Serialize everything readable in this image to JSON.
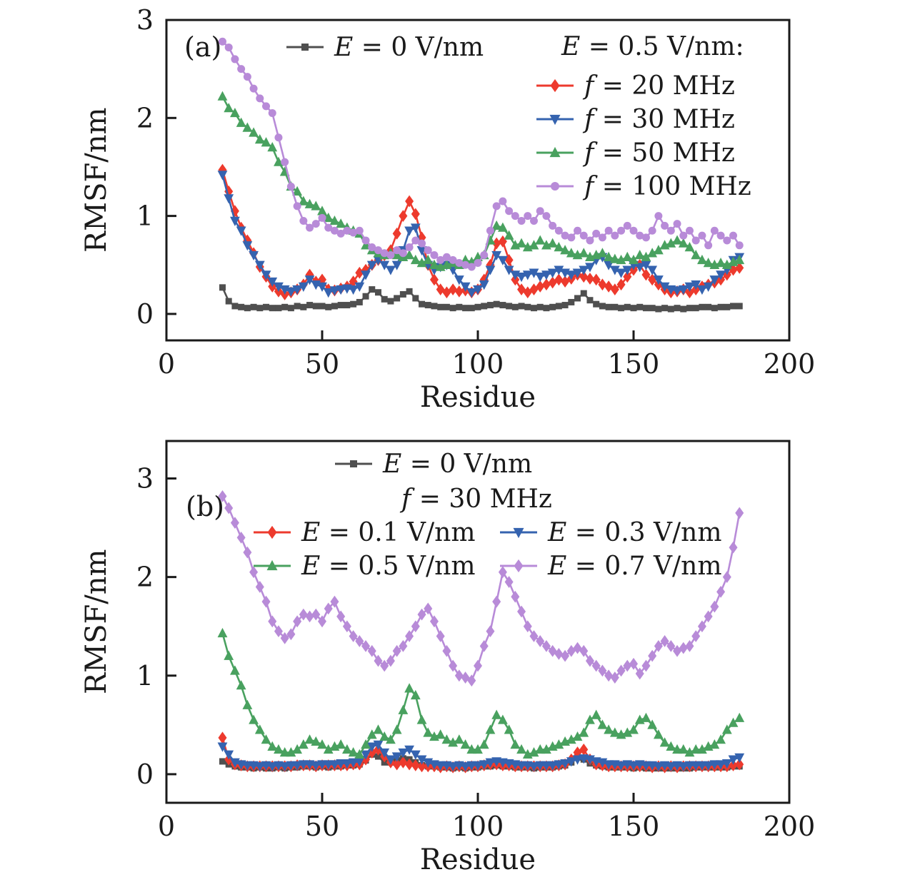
{
  "figure": {
    "panels": [
      "(a)",
      "(b)"
    ],
    "axis_color": "#1a1a1a",
    "background": "#ffffff"
  },
  "chart_data": [
    {
      "type": "line",
      "panel_label": "(a)",
      "xlabel": "Residue",
      "ylabel": "RMSF/nm",
      "xlim": [
        0,
        200
      ],
      "ylim": [
        -0.27,
        3.0
      ],
      "xticks": [
        0,
        50,
        100,
        150,
        200
      ],
      "yticks": [
        0,
        1,
        2,
        3
      ],
      "grid": false,
      "legend_position": "inside top, markers with line segments",
      "legend": {
        "header": "E = 0.5 V/nm:"
      },
      "x": [
        18,
        20,
        22,
        24,
        26,
        28,
        30,
        32,
        34,
        36,
        38,
        40,
        42,
        44,
        46,
        48,
        50,
        52,
        54,
        56,
        58,
        60,
        62,
        64,
        66,
        68,
        70,
        72,
        74,
        76,
        78,
        80,
        82,
        84,
        86,
        88,
        90,
        92,
        94,
        96,
        98,
        100,
        102,
        104,
        106,
        108,
        110,
        112,
        114,
        116,
        118,
        120,
        122,
        124,
        126,
        128,
        130,
        132,
        134,
        136,
        138,
        140,
        142,
        144,
        146,
        148,
        150,
        152,
        154,
        156,
        158,
        160,
        162,
        164,
        166,
        168,
        170,
        172,
        174,
        176,
        178,
        180,
        182,
        184
      ],
      "series": [
        {
          "name": "E = 0 V/nm",
          "marker": "square",
          "color": "#4f4f4f",
          "values": [
            0.27,
            0.13,
            0.08,
            0.07,
            0.06,
            0.07,
            0.06,
            0.07,
            0.06,
            0.06,
            0.07,
            0.06,
            0.08,
            0.07,
            0.09,
            0.08,
            0.08,
            0.07,
            0.08,
            0.09,
            0.09,
            0.1,
            0.12,
            0.18,
            0.25,
            0.22,
            0.15,
            0.13,
            0.16,
            0.2,
            0.23,
            0.16,
            0.1,
            0.09,
            0.08,
            0.07,
            0.07,
            0.06,
            0.07,
            0.06,
            0.06,
            0.07,
            0.08,
            0.09,
            0.1,
            0.09,
            0.08,
            0.07,
            0.08,
            0.07,
            0.06,
            0.07,
            0.06,
            0.07,
            0.08,
            0.09,
            0.12,
            0.16,
            0.21,
            0.14,
            0.1,
            0.08,
            0.07,
            0.07,
            0.06,
            0.07,
            0.06,
            0.07,
            0.06,
            0.06,
            0.05,
            0.06,
            0.05,
            0.06,
            0.05,
            0.06,
            0.06,
            0.07,
            0.07,
            0.06,
            0.07,
            0.07,
            0.08,
            0.08
          ]
        },
        {
          "name": "f = 20 MHz",
          "marker": "diamond",
          "color": "#ed3a2d",
          "values": [
            1.47,
            1.25,
            1.05,
            0.88,
            0.75,
            0.62,
            0.48,
            0.38,
            0.28,
            0.23,
            0.2,
            0.22,
            0.25,
            0.3,
            0.4,
            0.33,
            0.35,
            0.25,
            0.24,
            0.26,
            0.28,
            0.33,
            0.42,
            0.45,
            0.5,
            0.55,
            0.6,
            0.65,
            0.82,
            1.0,
            1.15,
            1.02,
            0.78,
            0.5,
            0.35,
            0.25,
            0.22,
            0.25,
            0.23,
            0.24,
            0.22,
            0.25,
            0.35,
            0.5,
            0.72,
            0.74,
            0.55,
            0.35,
            0.25,
            0.22,
            0.25,
            0.28,
            0.3,
            0.32,
            0.35,
            0.33,
            0.36,
            0.4,
            0.38,
            0.36,
            0.35,
            0.3,
            0.28,
            0.25,
            0.3,
            0.38,
            0.45,
            0.5,
            0.4,
            0.35,
            0.3,
            0.25,
            0.22,
            0.23,
            0.25,
            0.22,
            0.25,
            0.28,
            0.3,
            0.32,
            0.35,
            0.4,
            0.45,
            0.47
          ]
        },
        {
          "name": "f = 30 MHz",
          "marker": "triangle-down",
          "color": "#3563af",
          "values": [
            1.42,
            1.18,
            0.95,
            0.85,
            0.7,
            0.6,
            0.5,
            0.4,
            0.33,
            0.28,
            0.25,
            0.23,
            0.25,
            0.28,
            0.35,
            0.3,
            0.28,
            0.22,
            0.24,
            0.25,
            0.26,
            0.25,
            0.28,
            0.4,
            0.5,
            0.55,
            0.5,
            0.45,
            0.5,
            0.65,
            0.85,
            0.88,
            0.65,
            0.5,
            0.45,
            0.48,
            0.5,
            0.45,
            0.35,
            0.28,
            0.22,
            0.25,
            0.3,
            0.45,
            0.6,
            0.55,
            0.45,
            0.4,
            0.38,
            0.4,
            0.42,
            0.38,
            0.4,
            0.42,
            0.45,
            0.42,
            0.4,
            0.42,
            0.45,
            0.48,
            0.55,
            0.58,
            0.5,
            0.45,
            0.42,
            0.45,
            0.5,
            0.48,
            0.5,
            0.45,
            0.35,
            0.28,
            0.25,
            0.24,
            0.25,
            0.28,
            0.3,
            0.25,
            0.28,
            0.35,
            0.4,
            0.45,
            0.55,
            0.58
          ]
        },
        {
          "name": "f = 50 MHz",
          "marker": "triangle-up",
          "color": "#49a15f",
          "values": [
            2.22,
            2.1,
            2.05,
            1.95,
            1.9,
            1.85,
            1.78,
            1.75,
            1.7,
            1.55,
            1.45,
            1.3,
            1.25,
            1.15,
            1.12,
            1.1,
            1.05,
            0.98,
            0.95,
            0.92,
            0.88,
            0.85,
            0.82,
            0.7,
            0.65,
            0.62,
            0.6,
            0.62,
            0.6,
            0.58,
            0.6,
            0.55,
            0.52,
            0.55,
            0.5,
            0.48,
            0.5,
            0.52,
            0.5,
            0.55,
            0.53,
            0.58,
            0.6,
            0.75,
            0.9,
            0.88,
            0.8,
            0.7,
            0.72,
            0.68,
            0.7,
            0.75,
            0.7,
            0.72,
            0.68,
            0.65,
            0.62,
            0.6,
            0.62,
            0.58,
            0.6,
            0.62,
            0.58,
            0.56,
            0.55,
            0.58,
            0.55,
            0.6,
            0.58,
            0.62,
            0.65,
            0.7,
            0.72,
            0.75,
            0.72,
            0.68,
            0.6,
            0.55,
            0.52,
            0.5,
            0.52,
            0.5,
            0.53,
            0.55
          ]
        },
        {
          "name": "f = 100 MHz",
          "marker": "circle",
          "color": "#b88bd8",
          "values": [
            2.78,
            2.72,
            2.6,
            2.5,
            2.42,
            2.3,
            2.2,
            2.12,
            2.05,
            1.8,
            1.55,
            1.3,
            1.1,
            0.95,
            0.88,
            0.92,
            0.98,
            0.88,
            0.85,
            0.82,
            0.85,
            0.83,
            0.85,
            0.75,
            0.68,
            0.65,
            0.62,
            0.6,
            0.65,
            0.62,
            0.68,
            0.75,
            0.72,
            0.65,
            0.6,
            0.55,
            0.58,
            0.55,
            0.52,
            0.5,
            0.48,
            0.52,
            0.6,
            0.85,
            1.1,
            1.15,
            1.05,
            1.0,
            0.95,
            1.0,
            0.95,
            1.05,
            1.0,
            0.9,
            0.85,
            0.8,
            0.78,
            0.85,
            0.8,
            0.75,
            0.82,
            0.78,
            0.85,
            0.8,
            0.85,
            0.9,
            0.85,
            0.8,
            0.78,
            0.85,
            1.0,
            0.9,
            0.85,
            0.92,
            0.8,
            0.85,
            0.75,
            0.8,
            0.7,
            0.85,
            0.8,
            0.75,
            0.8,
            0.7
          ]
        }
      ]
    },
    {
      "type": "line",
      "panel_label": "(b)",
      "xlabel": "Residue",
      "ylabel": "RMSF/nm",
      "xlim": [
        0,
        200
      ],
      "ylim": [
        -0.29,
        3.38
      ],
      "xticks": [
        0,
        50,
        100,
        150,
        200
      ],
      "yticks": [
        0,
        1,
        2,
        3
      ],
      "grid": false,
      "legend_position": "inside top, markers with line segments",
      "legend": {
        "subheader": "f = 30 MHz"
      },
      "x": [
        18,
        20,
        22,
        24,
        26,
        28,
        30,
        32,
        34,
        36,
        38,
        40,
        42,
        44,
        46,
        48,
        50,
        52,
        54,
        56,
        58,
        60,
        62,
        64,
        66,
        68,
        70,
        72,
        74,
        76,
        78,
        80,
        82,
        84,
        86,
        88,
        90,
        92,
        94,
        96,
        98,
        100,
        102,
        104,
        106,
        108,
        110,
        112,
        114,
        116,
        118,
        120,
        122,
        124,
        126,
        128,
        130,
        132,
        134,
        136,
        138,
        140,
        142,
        144,
        146,
        148,
        150,
        152,
        154,
        156,
        158,
        160,
        162,
        164,
        166,
        168,
        170,
        172,
        174,
        176,
        178,
        180,
        182,
        184
      ],
      "series": [
        {
          "name": "E = 0 V/nm",
          "marker": "square",
          "color": "#4f4f4f",
          "values": [
            0.13,
            0.1,
            0.08,
            0.07,
            0.07,
            0.06,
            0.07,
            0.06,
            0.06,
            0.07,
            0.06,
            0.07,
            0.07,
            0.08,
            0.08,
            0.07,
            0.08,
            0.07,
            0.08,
            0.08,
            0.09,
            0.09,
            0.1,
            0.14,
            0.2,
            0.18,
            0.12,
            0.12,
            0.14,
            0.16,
            0.15,
            0.12,
            0.09,
            0.08,
            0.08,
            0.07,
            0.07,
            0.06,
            0.07,
            0.06,
            0.07,
            0.07,
            0.08,
            0.08,
            0.09,
            0.08,
            0.08,
            0.07,
            0.07,
            0.07,
            0.06,
            0.07,
            0.07,
            0.07,
            0.08,
            0.09,
            0.12,
            0.17,
            0.15,
            0.11,
            0.09,
            0.08,
            0.07,
            0.07,
            0.07,
            0.07,
            0.06,
            0.07,
            0.06,
            0.06,
            0.06,
            0.06,
            0.06,
            0.06,
            0.06,
            0.06,
            0.07,
            0.07,
            0.07,
            0.07,
            0.07,
            0.07,
            0.08,
            0.08
          ]
        },
        {
          "name": "E = 0.1 V/nm",
          "marker": "diamond",
          "color": "#ed3a2d",
          "values": [
            0.37,
            0.15,
            0.1,
            0.09,
            0.08,
            0.08,
            0.08,
            0.08,
            0.08,
            0.08,
            0.08,
            0.08,
            0.09,
            0.09,
            0.09,
            0.08,
            0.09,
            0.09,
            0.09,
            0.09,
            0.09,
            0.1,
            0.1,
            0.15,
            0.22,
            0.25,
            0.18,
            0.12,
            0.1,
            0.12,
            0.1,
            0.09,
            0.08,
            0.08,
            0.08,
            0.07,
            0.08,
            0.07,
            0.08,
            0.07,
            0.08,
            0.08,
            0.09,
            0.1,
            0.1,
            0.09,
            0.09,
            0.08,
            0.08,
            0.08,
            0.08,
            0.08,
            0.08,
            0.08,
            0.09,
            0.1,
            0.15,
            0.22,
            0.25,
            0.15,
            0.1,
            0.09,
            0.08,
            0.08,
            0.08,
            0.08,
            0.08,
            0.08,
            0.08,
            0.07,
            0.08,
            0.07,
            0.08,
            0.07,
            0.08,
            0.08,
            0.08,
            0.08,
            0.08,
            0.08,
            0.08,
            0.08,
            0.09,
            0.1
          ]
        },
        {
          "name": "E = 0.3 V/nm",
          "marker": "triangle-down",
          "color": "#3563af",
          "values": [
            0.28,
            0.2,
            0.12,
            0.1,
            0.09,
            0.09,
            0.08,
            0.09,
            0.08,
            0.09,
            0.08,
            0.09,
            0.09,
            0.1,
            0.1,
            0.09,
            0.1,
            0.1,
            0.1,
            0.11,
            0.11,
            0.12,
            0.13,
            0.2,
            0.28,
            0.3,
            0.22,
            0.15,
            0.18,
            0.22,
            0.25,
            0.2,
            0.15,
            0.12,
            0.1,
            0.09,
            0.09,
            0.08,
            0.09,
            0.08,
            0.09,
            0.09,
            0.1,
            0.12,
            0.13,
            0.12,
            0.11,
            0.1,
            0.09,
            0.09,
            0.08,
            0.09,
            0.09,
            0.09,
            0.1,
            0.11,
            0.13,
            0.15,
            0.16,
            0.15,
            0.13,
            0.12,
            0.1,
            0.1,
            0.09,
            0.1,
            0.09,
            0.1,
            0.09,
            0.09,
            0.08,
            0.09,
            0.08,
            0.09,
            0.08,
            0.09,
            0.09,
            0.09,
            0.09,
            0.1,
            0.1,
            0.11,
            0.15,
            0.17
          ]
        },
        {
          "name": "E = 0.5 V/nm",
          "marker": "triangle-up",
          "color": "#49a15f",
          "values": [
            1.43,
            1.2,
            1.05,
            0.9,
            0.7,
            0.55,
            0.45,
            0.35,
            0.28,
            0.25,
            0.22,
            0.22,
            0.25,
            0.3,
            0.35,
            0.33,
            0.3,
            0.25,
            0.28,
            0.3,
            0.25,
            0.22,
            0.2,
            0.3,
            0.4,
            0.45,
            0.38,
            0.35,
            0.45,
            0.65,
            0.87,
            0.8,
            0.55,
            0.42,
            0.38,
            0.4,
            0.35,
            0.32,
            0.35,
            0.3,
            0.25,
            0.25,
            0.3,
            0.45,
            0.6,
            0.55,
            0.45,
            0.3,
            0.25,
            0.2,
            0.22,
            0.25,
            0.25,
            0.28,
            0.3,
            0.33,
            0.35,
            0.38,
            0.42,
            0.55,
            0.6,
            0.5,
            0.45,
            0.42,
            0.4,
            0.42,
            0.45,
            0.55,
            0.57,
            0.5,
            0.4,
            0.32,
            0.28,
            0.25,
            0.25,
            0.22,
            0.25,
            0.25,
            0.28,
            0.3,
            0.35,
            0.45,
            0.52,
            0.57
          ]
        },
        {
          "name": "E = 0.7 V/nm",
          "marker": "diamond",
          "color": "#b88bd8",
          "values": [
            2.82,
            2.7,
            2.55,
            2.4,
            2.25,
            2.05,
            1.9,
            1.75,
            1.55,
            1.45,
            1.38,
            1.42,
            1.55,
            1.62,
            1.6,
            1.62,
            1.55,
            1.68,
            1.75,
            1.6,
            1.5,
            1.4,
            1.35,
            1.3,
            1.25,
            1.15,
            1.1,
            1.15,
            1.25,
            1.3,
            1.4,
            1.5,
            1.62,
            1.68,
            1.55,
            1.4,
            1.25,
            1.1,
            1.0,
            0.98,
            0.95,
            1.1,
            1.3,
            1.45,
            1.75,
            2.05,
            1.95,
            1.8,
            1.65,
            1.5,
            1.4,
            1.35,
            1.3,
            1.25,
            1.22,
            1.2,
            1.25,
            1.28,
            1.25,
            1.15,
            1.1,
            1.05,
            1.0,
            0.98,
            1.05,
            1.1,
            1.12,
            1.02,
            1.1,
            1.2,
            1.3,
            1.35,
            1.3,
            1.25,
            1.28,
            1.3,
            1.4,
            1.5,
            1.6,
            1.7,
            1.85,
            2.0,
            2.3,
            2.65
          ]
        }
      ]
    }
  ]
}
